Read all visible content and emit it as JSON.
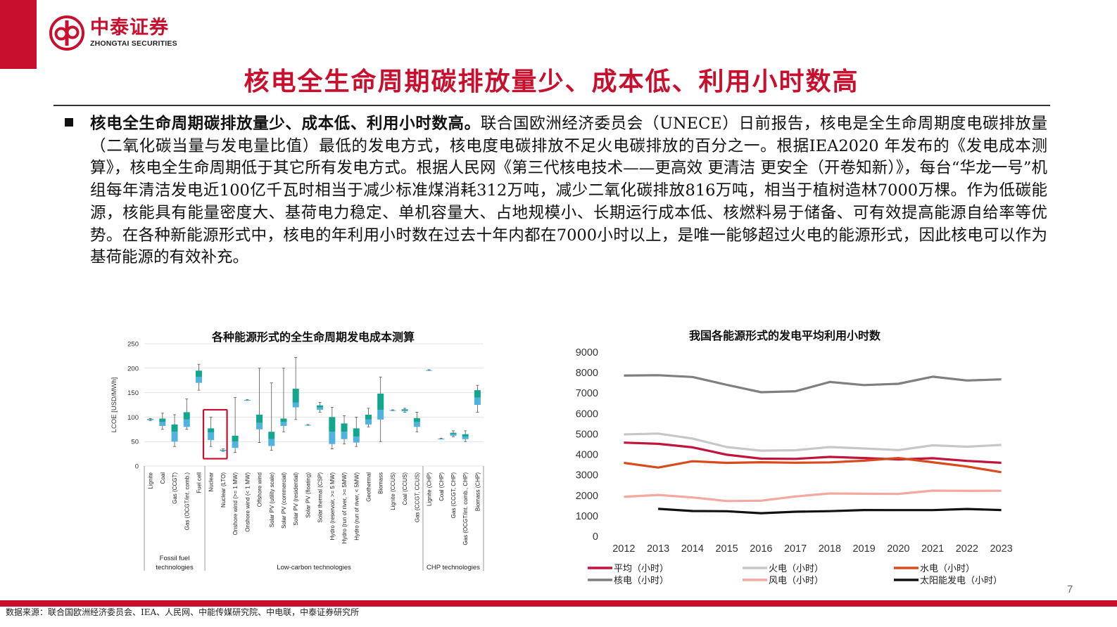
{
  "brand": {
    "name_cn": "中泰证券",
    "name_en": "ZHONGTAI SECURITIES",
    "color": "#c8102e"
  },
  "page_title": "核电全生命周期碳排放量少、成本低、利用小时数高",
  "paragraph": {
    "lead": "核电全生命周期碳排放量少、成本低、利用小时数高。",
    "body": "联合国欧洲经济委员会（UNECE）日前报告，核电是全生命周期度电碳排放量（二氧化碳当量与发电量比值）最低的发电方式，核电度电碳排放不足火电碳排放的百分之一。根据IEA2020 年发布的《发电成本测算》，核电全生命周期低于其它所有发电方式。根据人民网《第三代核电技术——更高效 更清洁 更安全（开卷知新）》，每台“华龙一号”机组每年清洁发电近100亿千瓦时相当于减少标准煤消耗312万吨，减少二氧化碳排放816万吨，相当于植树造林7000万棵。作为低碳能源，核能具有能量密度大、基荷电力稳定、单机容量大、占地规模小、长期运行成本低、核燃料易于储备、可有效提高能源自给率等优势。在各种新能源形式中，核电的年利用小时数在过去十年内都在7000小时以上，是唯一能够超过火电的能源形式，因此核电可以作为基荷能源的有效补充。"
  },
  "chart_data": [
    {
      "type": "box",
      "title": "各种能源形式的全生命周期发电成本测算",
      "ylabel": "LCOE [USD/MWh]",
      "ylim": [
        0,
        250
      ],
      "yticks": [
        0,
        50,
        100,
        150,
        200,
        250
      ],
      "grid": true,
      "highlight_category": "Nuclear",
      "groups": [
        {
          "label": "Fossil fuel technologies",
          "label_lines": [
            "Fossil fuel",
            "technologies"
          ],
          "span": [
            0,
            4
          ]
        },
        {
          "label": "Low-carbon technologies",
          "label_lines": [
            "Low-carbon technologies"
          ],
          "span": [
            5,
            22
          ]
        },
        {
          "label": "CHP technologies",
          "label_lines": [
            "CHP technologies"
          ],
          "span": [
            23,
            27
          ]
        }
      ],
      "boxes": [
        {
          "category": "Lignite",
          "min": 93,
          "q1": 94,
          "median": 95,
          "q3": 96,
          "max": 97
        },
        {
          "category": "Coal",
          "min": 75,
          "q1": 82,
          "median": 90,
          "q3": 97,
          "max": 108
        },
        {
          "category": "Gas (CCGT)",
          "min": 40,
          "q1": 50,
          "median": 70,
          "q3": 85,
          "max": 105
        },
        {
          "category": "Gas (OCGT/int. comb.)",
          "min": 75,
          "q1": 80,
          "median": 95,
          "q3": 110,
          "max": 137
        },
        {
          "category": "Fuel cell",
          "min": 155,
          "q1": 170,
          "median": 182,
          "q3": 195,
          "max": 208
        },
        {
          "category": "Nuclear",
          "min": 40,
          "q1": 53,
          "median": 69,
          "q3": 77,
          "max": 100
        },
        {
          "category": "Nuclear (LTO)",
          "min": 30,
          "q1": 31,
          "median": 32,
          "q3": 33,
          "max": 35
        },
        {
          "category": "Onshore wind (>= 1 MW)",
          "min": 28,
          "q1": 37,
          "median": 50,
          "q3": 62,
          "max": 140
        },
        {
          "category": "Onshore wind (< 1 MW)",
          "min": 134,
          "q1": 134,
          "median": 135,
          "q3": 135,
          "max": 136
        },
        {
          "category": "Offshore wind",
          "min": 48,
          "q1": 75,
          "median": 88,
          "q3": 105,
          "max": 200
        },
        {
          "category": "Solar PV (utility scale)",
          "min": 32,
          "q1": 41,
          "median": 55,
          "q3": 70,
          "max": 170
        },
        {
          "category": "Solar PV (commercial)",
          "min": 70,
          "q1": 82,
          "median": 90,
          "q3": 97,
          "max": 200
        },
        {
          "category": "Solar PV (residential)",
          "min": 95,
          "q1": 120,
          "median": 130,
          "q3": 158,
          "max": 222
        },
        {
          "category": "Solar PV (floating)",
          "min": 83,
          "q1": 83,
          "median": 84,
          "q3": 84,
          "max": 85
        },
        {
          "category": "Solar thermal (CSP)",
          "min": 110,
          "q1": 115,
          "median": 120,
          "q3": 124,
          "max": 130
        },
        {
          "category": "Hydro (reservoir, >= 5 MW)",
          "min": 35,
          "q1": 45,
          "median": 70,
          "q3": 100,
          "max": 120
        },
        {
          "category": "Hydro (run of river, >= 5MW)",
          "min": 45,
          "q1": 55,
          "median": 70,
          "q3": 87,
          "max": 103
        },
        {
          "category": "Hydro (run of river, < 5MW)",
          "min": 40,
          "q1": 48,
          "median": 60,
          "q3": 77,
          "max": 100
        },
        {
          "category": "Geothermal",
          "min": 80,
          "q1": 85,
          "median": 95,
          "q3": 105,
          "max": 118
        },
        {
          "category": "Biomass",
          "min": 50,
          "q1": 95,
          "median": 115,
          "q3": 148,
          "max": 182
        },
        {
          "category": "Lignite (CCUS)",
          "min": 113,
          "q1": 113,
          "median": 114,
          "q3": 114,
          "max": 115
        },
        {
          "category": "Coal (CCUS)",
          "min": 110,
          "q1": 112,
          "median": 114,
          "q3": 116,
          "max": 118
        },
        {
          "category": "Gas (CCGT, CCUS)",
          "min": 70,
          "q1": 80,
          "median": 90,
          "q3": 98,
          "max": 110
        },
        {
          "category": "Lignite (CHP)",
          "min": 195,
          "q1": 195,
          "median": 196,
          "q3": 196,
          "max": 197
        },
        {
          "category": "Coal (CHP)",
          "min": 55,
          "q1": 55,
          "median": 56,
          "q3": 56,
          "max": 57
        },
        {
          "category": "Gas (CCGT, CHP)",
          "min": 60,
          "q1": 62,
          "median": 65,
          "q3": 68,
          "max": 72
        },
        {
          "category": "Gas (OCGT/int. comb., CHP)",
          "min": 50,
          "q1": 55,
          "median": 60,
          "q3": 65,
          "max": 72
        },
        {
          "category": "Biomass (CHP)",
          "min": 110,
          "q1": 125,
          "median": 140,
          "q3": 155,
          "max": 165
        }
      ]
    },
    {
      "type": "line",
      "title": "我国各能源形式的发电平均利用小时数",
      "x": [
        "2012",
        "2013",
        "2014",
        "2015",
        "2016",
        "2017",
        "2018",
        "2019",
        "2020",
        "2021",
        "2022",
        "2023"
      ],
      "ylim": [
        0,
        9000
      ],
      "yticks": [
        0,
        1000,
        2000,
        3000,
        4000,
        5000,
        6000,
        7000,
        8000,
        9000
      ],
      "legend_position": "bottom",
      "series": [
        {
          "name": "平均（小时）",
          "color": "#c0143c",
          "values": [
            4579,
            4521,
            4348,
            3988,
            3797,
            3786,
            3880,
            3828,
            3758,
            3817,
            3687,
            3592
          ]
        },
        {
          "name": "火电（小时）",
          "color": "#c7c7c7",
          "values": [
            4982,
            5021,
            4778,
            4364,
            4186,
            4209,
            4361,
            4293,
            4216,
            4448,
            4379,
            4466
          ]
        },
        {
          "name": "水电（小时）",
          "color": "#d84a1b",
          "values": [
            3591,
            3359,
            3669,
            3590,
            3619,
            3597,
            3613,
            3697,
            3827,
            3622,
            3412,
            3133
          ]
        },
        {
          "name": "核电（小时）",
          "color": "#7f7f7f",
          "values": [
            7855,
            7874,
            7787,
            7403,
            7042,
            7089,
            7543,
            7394,
            7453,
            7802,
            7616,
            7670
          ]
        },
        {
          "name": "风电（小时）",
          "color": "#f4a8a0",
          "values": [
            1929,
            2025,
            1900,
            1724,
            1742,
            1948,
            2095,
            2082,
            2073,
            2232,
            2221,
            2225
          ]
        },
        {
          "name": "太阳能发电（小时）",
          "color": "#111111",
          "values": [
            null,
            1342,
            1235,
            1225,
            1129,
            1204,
            1230,
            1285,
            1281,
            1281,
            1337,
            1286
          ]
        }
      ]
    }
  ],
  "footer": {
    "source": "数据来源：联合国欧洲经济委员会、IEA、人民网、中能传媒研究院、中电联，中泰证券研究所",
    "page_number": "7"
  }
}
